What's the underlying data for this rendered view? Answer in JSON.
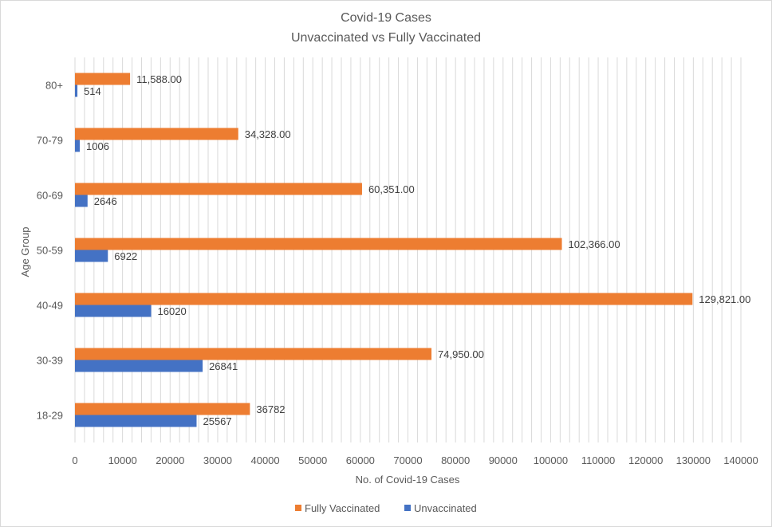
{
  "chart_data": {
    "type": "bar",
    "orientation": "horizontal",
    "title": "Covid-19 Cases",
    "subtitle": "Unvaccinated vs Fully Vaccinated",
    "xlabel": "No. of Covid-19 Cases",
    "ylabel": "Age Group",
    "xlim": [
      0,
      140000
    ],
    "xticks": [
      0,
      10000,
      20000,
      30000,
      40000,
      50000,
      60000,
      70000,
      80000,
      90000,
      100000,
      110000,
      120000,
      130000,
      140000
    ],
    "categories": [
      "18-29",
      "30-39",
      "40-49",
      "50-59",
      "60-69",
      "70-79",
      "80+"
    ],
    "series": [
      {
        "name": "Fully Vaccinated",
        "color": "#ed7d31",
        "values": [
          36782,
          74950,
          129821,
          102366,
          60351,
          34328,
          11588
        ],
        "labels": [
          "36782",
          "74,950.00",
          "129,821.00",
          "102,366.00",
          "60,351.00",
          "34,328.00",
          "11,588.00"
        ]
      },
      {
        "name": "Unvaccinated",
        "color": "#4472c4",
        "values": [
          25567,
          26841,
          16020,
          6922,
          2646,
          1006,
          514
        ],
        "labels": [
          "25567",
          "26841",
          "16020",
          "6922",
          "2646",
          "1006",
          "514"
        ]
      }
    ],
    "grid": true,
    "gridColor": "#d9d9d9",
    "legend": "bottom"
  }
}
